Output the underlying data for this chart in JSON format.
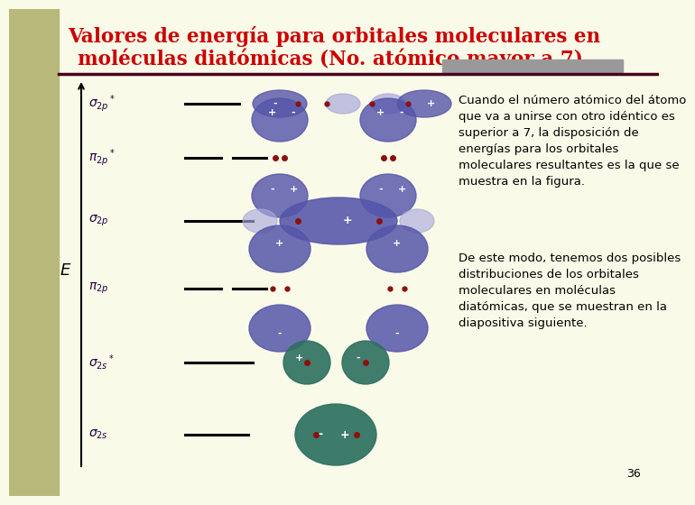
{
  "bg_color": "#FAFAE8",
  "left_strip_color": "#B8B87A",
  "title_line1": "Valores de energía para orbitales moleculares en",
  "title_line2": "moléculas diatómicas (No. atómico mayor a 7).",
  "title_color": "#CC0000",
  "title_fontsize": 15.5,
  "separator_color": "#4B0020",
  "e_label": "E",
  "paragraph1": "Cuando el número atómico del átomo\nque va a unirse con otro idéntico es\nsuperior a 7, la disposición de\nenergías para los orbitales\nmoleculares resultantes es la que se\nmuestra en la figura.",
  "paragraph2": "De este modo, tenemos dos posibles\ndistribuciones de los orbitales\nmoleculares en moléculas\ndiatómicas, que se muestran en la\ndiapositiva siguiente.",
  "text_color": "#000000",
  "text_fontsize": 9.5,
  "page_number": "36",
  "orbital_label_color": "#220044",
  "dash_color": "#000000",
  "header_bar_color": "#999999",
  "orbital_purple": "#7777CC",
  "orbital_purple_dark": "#5555AA",
  "orbital_purple_light": "#AAAADD",
  "orbital_teal": "#2D7060",
  "orbital_red": "#8B1010"
}
